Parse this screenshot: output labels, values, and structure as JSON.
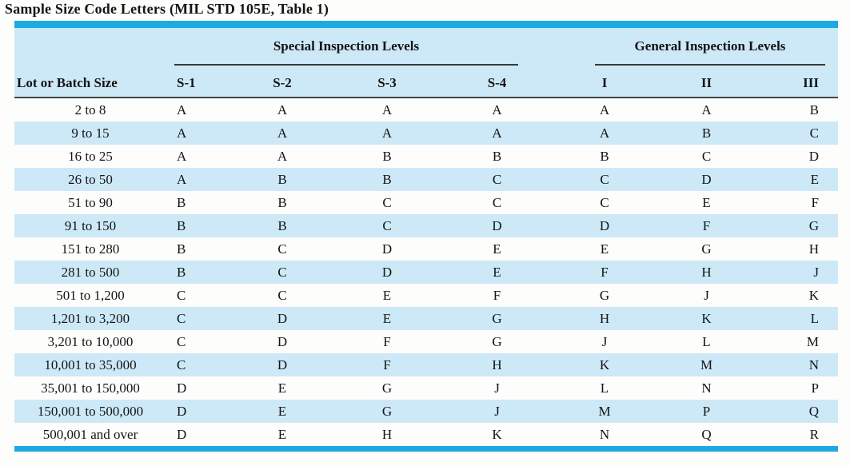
{
  "title": "Sample Size Code Letters (MIL STD 105E, Table 1)",
  "table": {
    "row_header": "Lot or Batch Size",
    "groups": [
      {
        "label": "Special Inspection Levels",
        "columns": [
          "S-1",
          "S-2",
          "S-3",
          "S-4"
        ]
      },
      {
        "label": "General Inspection Levels",
        "columns": [
          "I",
          "II",
          "III"
        ]
      }
    ],
    "rows": [
      {
        "lot": "2 to 8",
        "values": [
          "A",
          "A",
          "A",
          "A",
          "A",
          "A",
          "B"
        ]
      },
      {
        "lot": "9 to 15",
        "values": [
          "A",
          "A",
          "A",
          "A",
          "A",
          "B",
          "C"
        ]
      },
      {
        "lot": "16 to 25",
        "values": [
          "A",
          "A",
          "B",
          "B",
          "B",
          "C",
          "D"
        ]
      },
      {
        "lot": "26 to 50",
        "values": [
          "A",
          "B",
          "B",
          "C",
          "C",
          "D",
          "E"
        ]
      },
      {
        "lot": "51 to 90",
        "values": [
          "B",
          "B",
          "C",
          "C",
          "C",
          "E",
          "F"
        ]
      },
      {
        "lot": "91 to 150",
        "values": [
          "B",
          "B",
          "C",
          "D",
          "D",
          "F",
          "G"
        ]
      },
      {
        "lot": "151 to 280",
        "values": [
          "B",
          "C",
          "D",
          "E",
          "E",
          "G",
          "H"
        ]
      },
      {
        "lot": "281 to 500",
        "values": [
          "B",
          "C",
          "D",
          "E",
          "F",
          "H",
          "J"
        ]
      },
      {
        "lot": "501 to 1,200",
        "values": [
          "C",
          "C",
          "E",
          "F",
          "G",
          "J",
          "K"
        ]
      },
      {
        "lot": "1,201 to 3,200",
        "values": [
          "C",
          "D",
          "E",
          "G",
          "H",
          "K",
          "L"
        ]
      },
      {
        "lot": "3,201 to 10,000",
        "values": [
          "C",
          "D",
          "F",
          "G",
          "J",
          "L",
          "M"
        ]
      },
      {
        "lot": "10,001 to 35,000",
        "values": [
          "C",
          "D",
          "F",
          "H",
          "K",
          "M",
          "N"
        ]
      },
      {
        "lot": "35,001 to 150,000",
        "values": [
          "D",
          "E",
          "G",
          "J",
          "L",
          "N",
          "P"
        ]
      },
      {
        "lot": "150,001 to 500,000",
        "values": [
          "D",
          "E",
          "G",
          "J",
          "M",
          "P",
          "Q"
        ]
      },
      {
        "lot": "500,001 and over",
        "values": [
          "D",
          "E",
          "H",
          "K",
          "N",
          "Q",
          "R"
        ]
      }
    ]
  },
  "colors": {
    "accent_bar": "#1FA9E2",
    "band_blue": "#CDE9F8",
    "rule_dark": "#454545",
    "text": "#141414"
  }
}
